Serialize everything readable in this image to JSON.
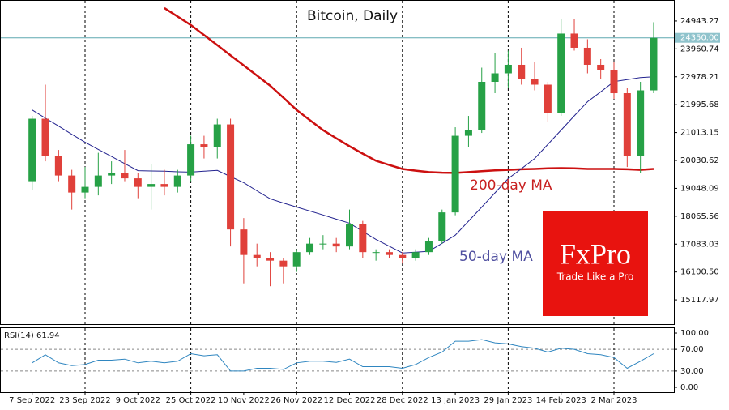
{
  "chart_data": [
    {
      "type": "candlestick",
      "title": "Bitcoin, Daily",
      "categories": [
        "7 Sep 2022",
        null,
        null,
        null,
        "23 Sep 2022",
        null,
        null,
        null,
        "9 Oct 2022",
        null,
        null,
        null,
        "25 Oct 2022",
        null,
        null,
        null,
        "10 Nov 2022",
        null,
        null,
        null,
        "26 Nov 2022",
        null,
        null,
        null,
        "12 Dec 2022",
        null,
        null,
        null,
        "28 Dec 2022",
        null,
        null,
        null,
        "13 Jan 2023",
        null,
        null,
        null,
        "29 Jan 2023",
        null,
        null,
        null,
        "14 Feb 2023",
        null,
        null,
        null,
        "2 Mar 2023",
        null,
        null,
        null
      ],
      "open": [
        19300,
        21500,
        20200,
        19500,
        18900,
        19100,
        19500,
        19600,
        19400,
        19100,
        19200,
        19100,
        19500,
        20600,
        20500,
        21300,
        17600,
        16700,
        16600,
        16500,
        16300,
        16800,
        17100,
        17100,
        17000,
        17800,
        16800,
        16800,
        16700,
        16600,
        16800,
        17200,
        18200,
        20900,
        21100,
        22800,
        23100,
        23400,
        22900,
        22700,
        21700,
        24500,
        24000,
        23400,
        23200,
        22400,
        20200,
        22500
      ],
      "high": [
        21600,
        22700,
        20400,
        19700,
        19800,
        20300,
        20000,
        20400,
        19600,
        19900,
        19700,
        19700,
        20900,
        20900,
        21500,
        21500,
        18000,
        17100,
        16800,
        16600,
        16900,
        17300,
        17400,
        17300,
        18300,
        17900,
        16900,
        16900,
        16800,
        16900,
        17300,
        18300,
        21200,
        21600,
        23300,
        23800,
        23900,
        24000,
        23500,
        22800,
        25000,
        25000,
        24300,
        23600,
        23500,
        22600,
        22800,
        24900
      ],
      "low": [
        19000,
        20000,
        19300,
        18300,
        18700,
        18800,
        19200,
        19300,
        18700,
        18300,
        18800,
        18900,
        19300,
        20100,
        20100,
        17000,
        15700,
        16300,
        15600,
        15700,
        16100,
        16700,
        16900,
        16800,
        16900,
        16600,
        16500,
        16600,
        16400,
        16500,
        16700,
        17100,
        18100,
        20500,
        21000,
        22400,
        22600,
        22700,
        22500,
        21400,
        21600,
        23900,
        23100,
        22900,
        22200,
        19800,
        19600,
        22400
      ],
      "close": [
        21500,
        20200,
        19500,
        18900,
        19100,
        19500,
        19600,
        19400,
        19100,
        19200,
        19100,
        19500,
        20600,
        20500,
        21300,
        17600,
        16700,
        16600,
        16500,
        16300,
        16800,
        17100,
        17100,
        17000,
        17800,
        16800,
        16800,
        16700,
        16600,
        16800,
        17200,
        18200,
        20900,
        21100,
        22800,
        23100,
        23400,
        22900,
        22700,
        21700,
        24500,
        24000,
        23400,
        23200,
        22400,
        20200,
        22500,
        24350
      ],
      "up_color": "#26a146",
      "down_color": "#e0403a",
      "ylim": [
        14264,
        25655
      ],
      "yticks": [
        24943.27,
        23960.74,
        22978.21,
        21995.68,
        21013.15,
        20030.62,
        19048.09,
        18065.56,
        17083.03,
        {
          "value": 16100.5,
          "label": "16100.50"
        },
        15117.97
      ],
      "series": [
        {
          "name": "200-day MA",
          "color": "#cc1010",
          "values": [
            null,
            null,
            null,
            null,
            null,
            null,
            null,
            null,
            null,
            null,
            25400,
            25100,
            24800,
            24450,
            24090,
            23730,
            23380,
            23020,
            22665,
            22240,
            21810,
            21450,
            21100,
            20810,
            20530,
            20270,
            20020,
            19870,
            19730,
            19670,
            19620,
            19600,
            19590,
            19620,
            19650,
            19680,
            19700,
            19720,
            19730,
            19750,
            19760,
            19750,
            19730,
            19730,
            19730,
            19720,
            19700,
            19730
          ]
        },
        {
          "name": "50-day MA",
          "color": "#23238f",
          "values": [
            21810,
            21520,
            21240,
            20950,
            20670,
            20420,
            20170,
            19920,
            19670,
            19660,
            19650,
            19630,
            19620,
            19650,
            19680,
            19460,
            19250,
            18960,
            18680,
            18530,
            18390,
            18250,
            18110,
            17960,
            17820,
            17530,
            17250,
            17010,
            16770,
            16800,
            16830,
            17110,
            17400,
            17890,
            18390,
            18890,
            19390,
            19740,
            20100,
            20600,
            21100,
            21600,
            22100,
            22450,
            22810,
            22880,
            22950,
            22980
          ]
        }
      ],
      "last_price": {
        "value": 24350,
        "label": "24350.00"
      },
      "logo": {
        "title": "FxPro",
        "subtitle": "Trade Like a Pro"
      }
    },
    {
      "type": "line",
      "title": "RSI(14) 61.94",
      "series": [
        {
          "color": "#2f86c0",
          "values": [
            45,
            60,
            45,
            40,
            42,
            50,
            50,
            52,
            45,
            48,
            45,
            48,
            62,
            58,
            60,
            30,
            30,
            35,
            35,
            33,
            45,
            48,
            48,
            46,
            52,
            38,
            38,
            38,
            35,
            42,
            55,
            65,
            85,
            85,
            88,
            82,
            80,
            75,
            72,
            65,
            72,
            70,
            62,
            60,
            55,
            35,
            48,
            62
          ]
        }
      ],
      "ylim": [
        -9,
        109
      ],
      "yticks": [
        {
          "value": 100,
          "label": "100.00"
        },
        {
          "value": 70,
          "label": "70.00"
        },
        {
          "value": 30,
          "label": "30.00"
        },
        {
          "value": 0,
          "label": "0.00"
        }
      ],
      "levels": [
        70,
        30
      ]
    }
  ]
}
